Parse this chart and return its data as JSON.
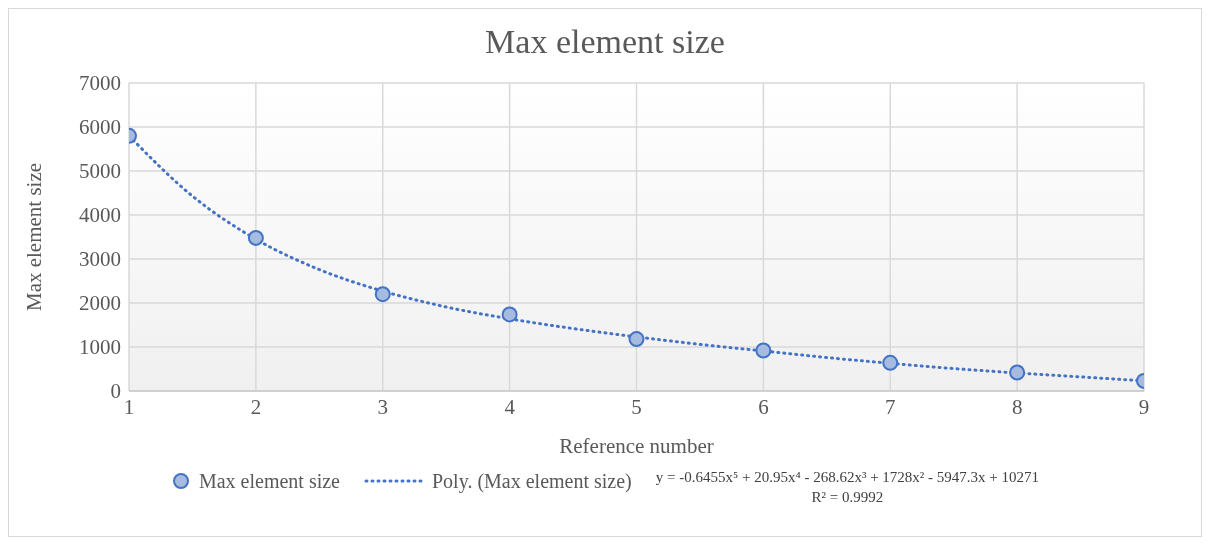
{
  "chart_data": {
    "type": "scatter",
    "title": "Max element size",
    "xlabel": "Reference number",
    "ylabel": "Max element size",
    "xlim": [
      1,
      9
    ],
    "xticks": [
      1,
      2,
      3,
      4,
      5,
      6,
      7,
      8,
      9
    ],
    "ylim": [
      0,
      7000
    ],
    "yticks": [
      0,
      1000,
      2000,
      3000,
      4000,
      5000,
      6000,
      7000
    ],
    "grid": true,
    "legend": "bottom",
    "series": [
      {
        "name": "Max element size",
        "marker": "circle",
        "color": "#4472c4",
        "x": [
          1,
          2,
          3,
          4,
          5,
          6,
          7,
          8,
          9
        ],
        "values": [
          5800,
          3480,
          2200,
          1740,
          1180,
          920,
          640,
          420,
          230
        ]
      },
      {
        "name": "Poly. (Max element size)",
        "type": "line",
        "marker": "none",
        "line_style": "dotted",
        "color": "#4472c4",
        "x": [
          1,
          1.5,
          2,
          2.5,
          3,
          3.5,
          4,
          4.5,
          5,
          5.5,
          6,
          6.5,
          7,
          7.5,
          8,
          8.5,
          9
        ],
        "values": [
          5800,
          4430,
          3450,
          2760,
          2270,
          1910,
          1640,
          1420,
          1230,
          1060,
          910,
          760,
          630,
          510,
          410,
          320,
          230
        ]
      }
    ],
    "annotations": [
      "y = -0.6455x⁵ + 20.95x⁴ - 268.62x³ + 1728x² - 5947.3x + 10271",
      "R² = 0.9992"
    ]
  }
}
